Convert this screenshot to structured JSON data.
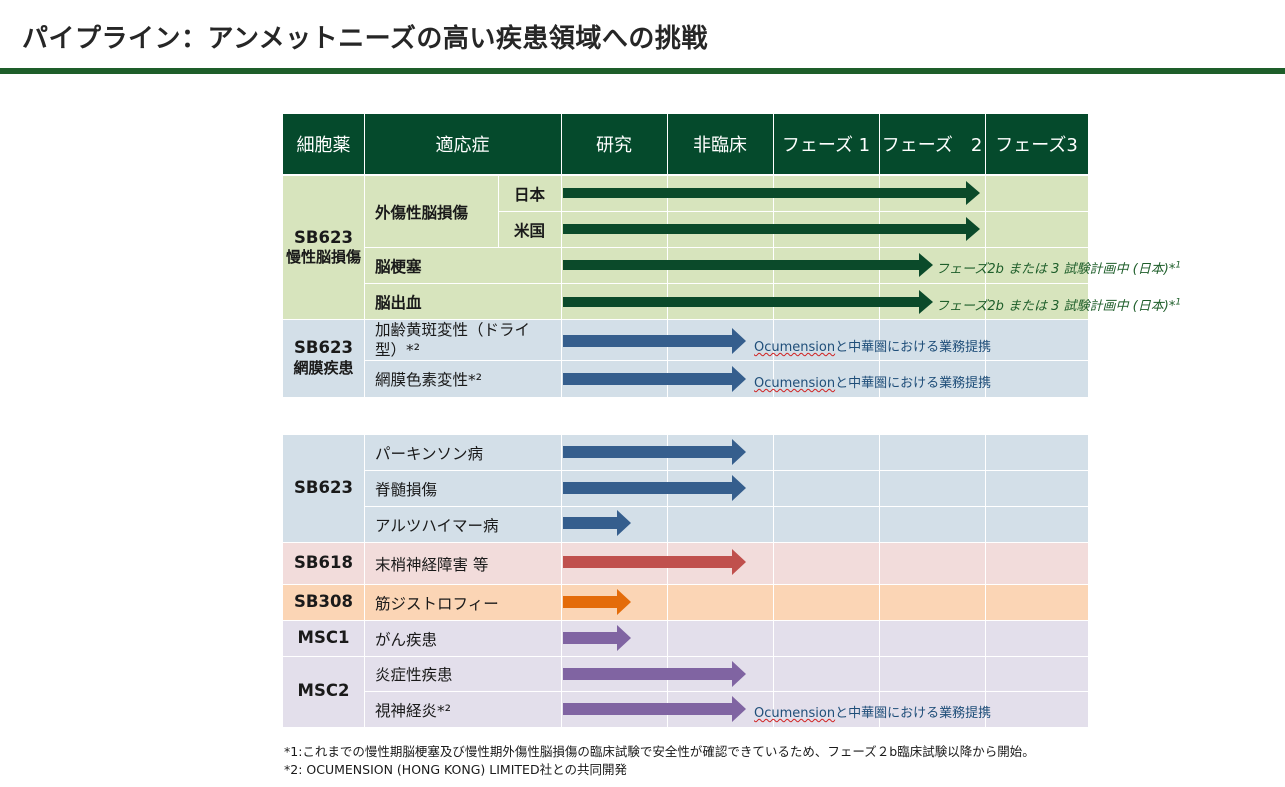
{
  "title": "パイプライン：アンメットニーズの高い疾患領域への挑戦",
  "headers": [
    "細胞薬",
    "適応症",
    "研究",
    "非臨床",
    "フェーズ 1",
    "フェーズ　2",
    "フェーズ3"
  ],
  "groups": {
    "sb623_chronic": {
      "name": "SB623",
      "sub": "慢性脳損傷"
    },
    "sb623_retina": {
      "name": "SB623",
      "sub": "網膜疾患"
    },
    "sb623": {
      "name": "SB623"
    },
    "sb618": {
      "name": "SB618"
    },
    "sb308": {
      "name": "SB308"
    },
    "msc1": {
      "name": "MSC1"
    },
    "msc2": {
      "name": "MSC2"
    }
  },
  "indications": {
    "tbi": "外傷性脳損傷",
    "japan": "日本",
    "us": "米国",
    "stroke": "脳梗塞",
    "hemorrhage": "脳出血",
    "amd_line1": "加齢黄斑変性（ドライ",
    "amd_line2": "型）*²",
    "rp": "網膜色素変性*²",
    "parkinson": "パーキンソン病",
    "sci": "脊髄損傷",
    "alzheimer": "アルツハイマー病",
    "pn": "末梢神経障害 等",
    "md": "筋ジストロフィー",
    "cancer": "がん疾患",
    "inflam": "炎症性疾患",
    "optic": "視神経炎*²"
  },
  "notes": {
    "phase2b_text": "フェーズ2b または 3 試験計画中 (日本)*",
    "phase2b_sup": "1",
    "ocu_brand": "Ocumension",
    "ocu_rest": "と中華圏における業務提携"
  },
  "footnotes": [
    "*1:これまでの慢性期脳梗塞及び慢性期外傷性脳損傷の臨床試験で安全性が確認できているため、フェーズ２b臨床試験以降から開始。",
    "*2: OCUMENSION (HONG KONG) LIMITED社との共同開発"
  ],
  "colors": {
    "header": "#054a2c",
    "green_band": "#d7e4bd",
    "blue_band": "#d3dfe8",
    "red_band": "#f2dcdb",
    "orange_band": "#fbd5b5",
    "purple_band": "#e3dfeb",
    "arrow_green": "#0b4a2a",
    "arrow_blue": "#355e8d",
    "arrow_red": "#c0504d",
    "arrow_orange": "#e46c0a",
    "arrow_purple": "#8064a2"
  },
  "pipeline": [
    {
      "indication": "外傷性脳損傷（日本）",
      "progress_end": "フェーズ　2",
      "color": "arrow_green"
    },
    {
      "indication": "外傷性脳損傷（米国）",
      "progress_end": "フェーズ　2",
      "color": "arrow_green"
    },
    {
      "indication": "脳梗塞",
      "progress_end": "フェーズ　2",
      "color": "arrow_green"
    },
    {
      "indication": "脳出血",
      "progress_end": "フェーズ　2",
      "color": "arrow_green"
    },
    {
      "indication": "加齢黄斑変性（ドライ型）",
      "progress_end": "非臨床",
      "color": "arrow_blue"
    },
    {
      "indication": "網膜色素変性",
      "progress_end": "非臨床",
      "color": "arrow_blue"
    },
    {
      "indication": "パーキンソン病",
      "progress_end": "非臨床",
      "color": "arrow_blue"
    },
    {
      "indication": "脊髄損傷",
      "progress_end": "非臨床",
      "color": "arrow_blue"
    },
    {
      "indication": "アルツハイマー病",
      "progress_end": "研究",
      "color": "arrow_blue"
    },
    {
      "indication": "末梢神経障害 等",
      "progress_end": "非臨床",
      "color": "arrow_red"
    },
    {
      "indication": "筋ジストロフィー",
      "progress_end": "研究",
      "color": "arrow_orange"
    },
    {
      "indication": "がん疾患",
      "progress_end": "研究",
      "color": "arrow_purple"
    },
    {
      "indication": "炎症性疾患",
      "progress_end": "非臨床",
      "color": "arrow_purple"
    },
    {
      "indication": "視神経炎",
      "progress_end": "非臨床",
      "color": "arrow_purple"
    }
  ]
}
